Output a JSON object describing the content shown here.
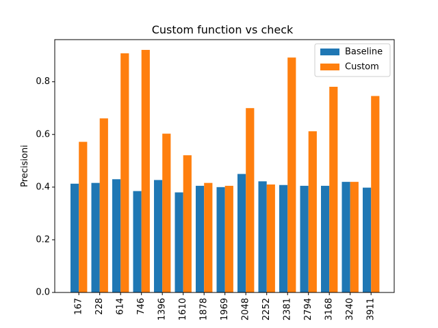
{
  "chart_data": {
    "type": "bar",
    "title": "Custom function vs check",
    "xlabel": "",
    "ylabel": "Precisioni",
    "ylim": [
      0,
      0.96
    ],
    "yticks": [
      0.0,
      0.2,
      0.4,
      0.6,
      0.8
    ],
    "ytick_labels": [
      "0.0",
      "0.2",
      "0.4",
      "0.6",
      "0.8"
    ],
    "grid": false,
    "legend_position": "top-right",
    "categories": [
      "167",
      "228",
      "614",
      "746",
      "1396",
      "1610",
      "1878",
      "1969",
      "2048",
      "2252",
      "2381",
      "2794",
      "3168",
      "3240",
      "3911"
    ],
    "series": [
      {
        "name": "Baseline",
        "color": "#1f77b4",
        "values": [
          0.413,
          0.416,
          0.43,
          0.385,
          0.427,
          0.38,
          0.405,
          0.4,
          0.45,
          0.422,
          0.408,
          0.405,
          0.405,
          0.42,
          0.398
        ]
      },
      {
        "name": "Custom",
        "color": "#ff7f0e",
        "values": [
          0.572,
          0.661,
          0.908,
          0.921,
          0.603,
          0.521,
          0.416,
          0.405,
          0.7,
          0.41,
          0.892,
          0.612,
          0.781,
          0.42,
          0.746
        ]
      }
    ]
  }
}
